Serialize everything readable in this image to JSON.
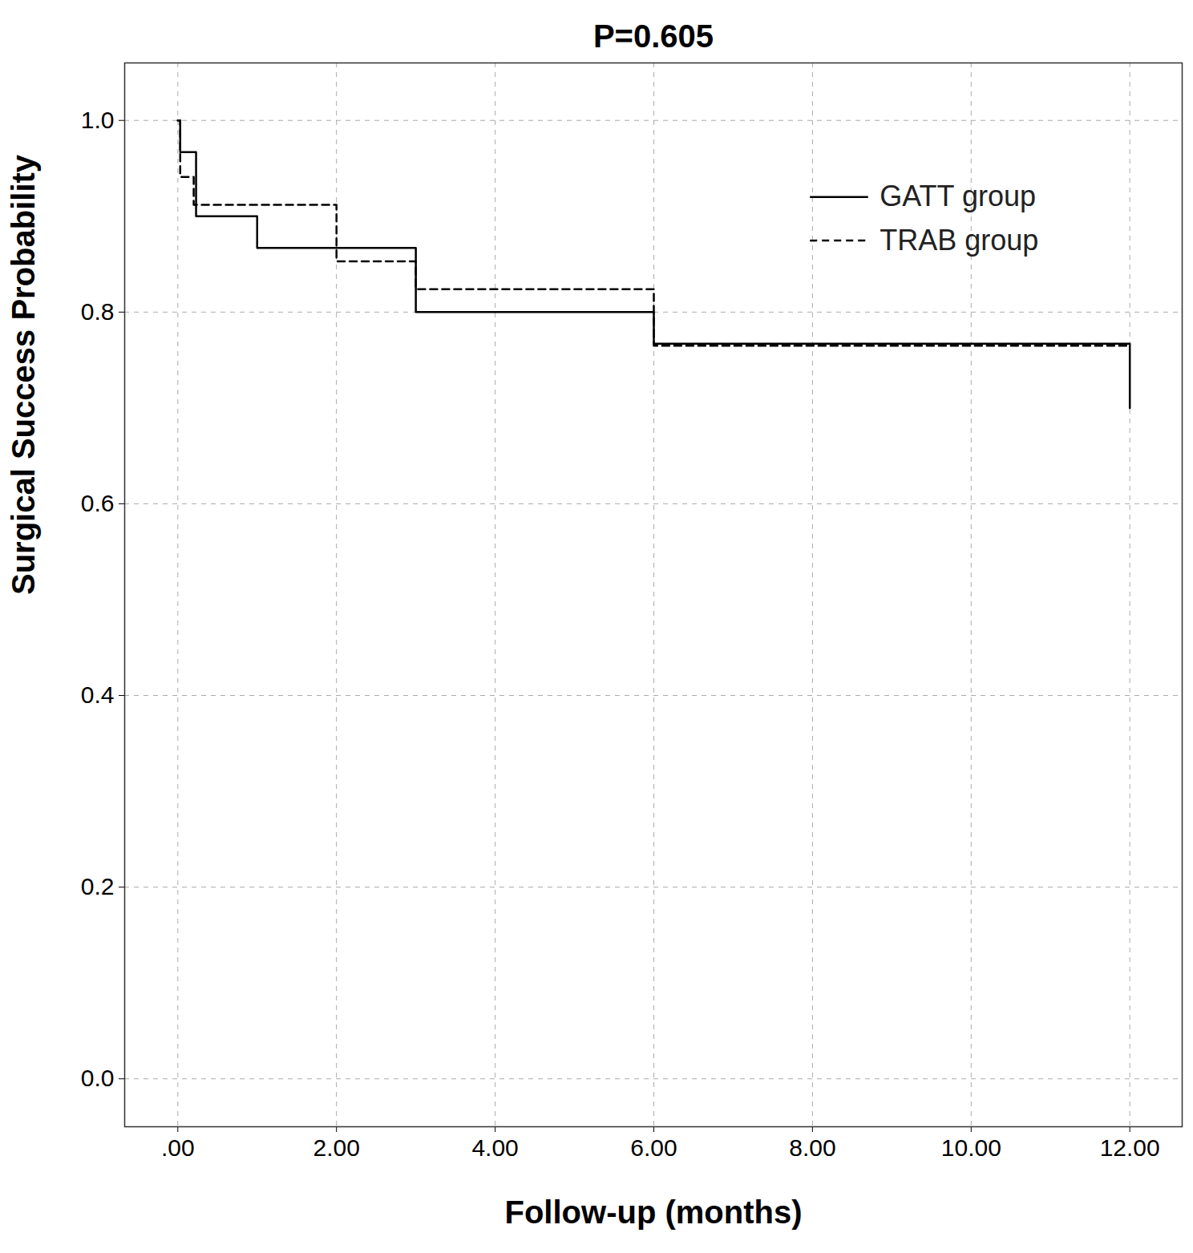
{
  "chart_data": {
    "type": "line",
    "title": "P=0.605",
    "x_label": "Follow-up (months)",
    "y_label": "Surgical Success Probability",
    "series": [
      {
        "name": "GATT group",
        "color": "#000000",
        "line_style": "solid",
        "x": [
          0,
          0.03,
          0.23,
          1,
          3,
          6,
          12,
          12
        ],
        "values": [
          1.0,
          0.967,
          0.9,
          0.867,
          0.8,
          0.767,
          0.767,
          0.7
        ]
      },
      {
        "name": "TRAB group",
        "color": "#000000",
        "line_style": "dashed",
        "x": [
          0,
          0.03,
          0.2,
          2,
          3,
          6,
          12
        ],
        "values": [
          1.0,
          0.941,
          0.912,
          0.853,
          0.824,
          0.765,
          0.765
        ]
      }
    ],
    "xlim": [
      -0.67,
      12.66
    ],
    "ylim": [
      -0.05,
      1.06
    ],
    "xticks": [
      {
        "value": 0,
        "label": ".00"
      },
      {
        "value": 2,
        "label": "2.00"
      },
      {
        "value": 4,
        "label": "4.00"
      },
      {
        "value": 6,
        "label": "6.00"
      },
      {
        "value": 8,
        "label": "8.00"
      },
      {
        "value": 10,
        "label": "10.00"
      },
      {
        "value": 12,
        "label": "12.00"
      }
    ],
    "yticks": [
      {
        "value": 0,
        "label": "0.0"
      },
      0.2,
      0.4,
      0.6,
      0.8,
      {
        "value": 1,
        "label": "1.0"
      }
    ],
    "grid": true,
    "legend": "top-right"
  }
}
